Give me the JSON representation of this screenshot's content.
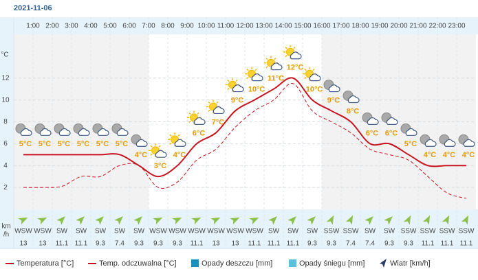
{
  "chart_data": {
    "type": "line",
    "date": "2021-11-06",
    "ylabel": "°C",
    "categories": [
      null,
      "1:00",
      "2:00",
      "3:00",
      "4:00",
      "5:00",
      "6:00",
      "7:00",
      "8:00",
      "9:00",
      "10:00",
      "11:00",
      "12:00",
      "13:00",
      "14:00",
      "15:00",
      "16:00",
      "17:00",
      "18:00",
      "19:00",
      "20:00",
      "21:00",
      "22:00",
      "23:00"
    ],
    "ylim": [
      0,
      16
    ],
    "yticks": [
      2,
      4,
      6,
      8,
      10,
      12
    ],
    "grid": true,
    "series": [
      {
        "name": "Temperatura [°C]",
        "color": "#c8141e",
        "dash": false,
        "values": [
          5,
          5,
          5,
          5,
          5,
          5,
          4,
          3,
          4,
          6,
          7,
          9,
          10,
          11,
          12,
          10,
          9,
          8,
          6,
          6,
          5,
          4,
          4,
          4
        ],
        "value_labels": [
          "5°C",
          "5°C",
          "5°C",
          "5°C",
          "5°C",
          "5°C",
          "4°C",
          "3°C",
          "4°C",
          "6°C",
          "7°C",
          "9°C",
          "10°C",
          "11°C",
          "12°C",
          "10°C",
          "9°C",
          "8°C",
          "6°C",
          "6°C",
          "5°C",
          "4°C",
          "4°C",
          "4°C"
        ]
      },
      {
        "name": "Temp. odczuwalna [°C]",
        "color": "#c8141e",
        "dash": true,
        "values": [
          2,
          2,
          2.1,
          3,
          3,
          4,
          4,
          2,
          2.5,
          4.5,
          5.5,
          7.5,
          9,
          10,
          11.5,
          9,
          8,
          7,
          5.5,
          5,
          4.5,
          3,
          1.5,
          1
        ]
      }
    ],
    "legend_extra": [
      {
        "name": "Opady deszczu [mm]",
        "color": "#1a8fbf"
      },
      {
        "name": "Opady śniegu [mm]",
        "color": "#5cbfdc"
      },
      {
        "name": "Wiatr [km/h]",
        "color": "#2c3e6b"
      }
    ],
    "wind_unit": [
      "km",
      "/h"
    ],
    "wind_color": "#8cc04a",
    "wind_dir": [
      "WSW",
      "WSW",
      "SW",
      "SW",
      "SW",
      "SW",
      "SW",
      "WSW",
      "WSW",
      "WSW",
      "WSW",
      "WSW",
      "WSW",
      "SW",
      "SW",
      "SW",
      "SSW",
      "SSW",
      "SW",
      "SW",
      "SSW",
      "SSW",
      "SSW",
      "SSW"
    ],
    "wind_speed": [
      13,
      13,
      11.1,
      11.1,
      9.3,
      7.4,
      9.3,
      9.3,
      9.3,
      11.1,
      13,
      13,
      11.1,
      11.1,
      11.1,
      9.3,
      9.3,
      7.4,
      7.4,
      9.3,
      9.3,
      11.1,
      11.1,
      11.1
    ]
  }
}
